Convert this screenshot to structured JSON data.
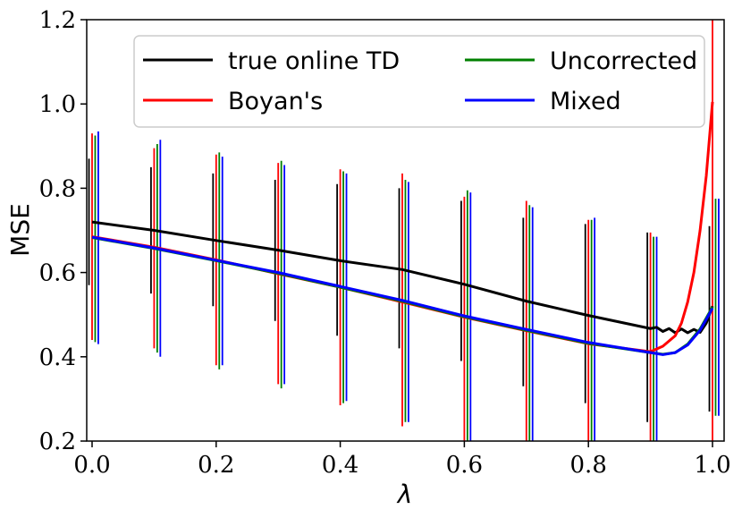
{
  "chart_data": {
    "type": "line",
    "xlabel": "λ",
    "ylabel": "MSE",
    "xlim": [
      -0.01,
      1.01
    ],
    "ylim": [
      0.2,
      1.2
    ],
    "xticks": [
      "0.0",
      "0.2",
      "0.4",
      "0.6",
      "0.8",
      "1.0"
    ],
    "yticks": [
      "0.2",
      "0.4",
      "0.6",
      "0.8",
      "1.0",
      "1.2"
    ],
    "legend_position": "top-center",
    "series": [
      {
        "name": "true online TD",
        "color": "#000000",
        "x": [
          0.0,
          0.1,
          0.2,
          0.3,
          0.4,
          0.5,
          0.6,
          0.7,
          0.8,
          0.9,
          0.91,
          0.92,
          0.93,
          0.94,
          0.95,
          0.96,
          0.97,
          0.98,
          0.99,
          1.0
        ],
        "y": [
          0.72,
          0.7,
          0.676,
          0.653,
          0.628,
          0.607,
          0.572,
          0.532,
          0.498,
          0.467,
          0.47,
          0.46,
          0.467,
          0.457,
          0.466,
          0.457,
          0.465,
          0.458,
          0.48,
          0.52
        ],
        "err_x": [
          -0.005,
          0.095,
          0.195,
          0.295,
          0.395,
          0.495,
          0.595,
          0.695,
          0.795,
          0.895,
          0.995
        ],
        "err_low": [
          0.57,
          0.55,
          0.52,
          0.485,
          0.45,
          0.42,
          0.39,
          0.33,
          0.29,
          0.245,
          0.27
        ],
        "err_high": [
          0.87,
          0.85,
          0.835,
          0.82,
          0.81,
          0.8,
          0.77,
          0.73,
          0.715,
          0.695,
          0.71
        ]
      },
      {
        "name": "Boyan's",
        "color": "#ff0000",
        "x": [
          0.0,
          0.1,
          0.2,
          0.3,
          0.4,
          0.5,
          0.6,
          0.7,
          0.8,
          0.9,
          0.92,
          0.94,
          0.95,
          0.96,
          0.97,
          0.98,
          0.99,
          1.0
        ],
        "y": [
          0.685,
          0.66,
          0.63,
          0.597,
          0.565,
          0.53,
          0.494,
          0.462,
          0.431,
          0.412,
          0.425,
          0.45,
          0.48,
          0.53,
          0.6,
          0.7,
          0.83,
          1.005
        ],
        "err_x": [
          0.0,
          0.1,
          0.2,
          0.3,
          0.4,
          0.5,
          0.6,
          0.7,
          0.8,
          0.9,
          1.0
        ],
        "err_low": [
          0.44,
          0.42,
          0.38,
          0.335,
          0.285,
          0.235,
          0.2,
          0.2,
          0.2,
          0.2,
          0.2
        ],
        "err_high": [
          0.93,
          0.895,
          0.88,
          0.86,
          0.845,
          0.835,
          0.78,
          0.77,
          0.725,
          0.695,
          1.2
        ]
      },
      {
        "name": "Uncorrected",
        "color": "#008000",
        "x": [
          0.0,
          0.1,
          0.2,
          0.3,
          0.4,
          0.5,
          0.6,
          0.7,
          0.8,
          0.9,
          0.92,
          0.94,
          0.96,
          0.98,
          1.0
        ],
        "y": [
          0.683,
          0.657,
          0.628,
          0.598,
          0.565,
          0.532,
          0.495,
          0.463,
          0.432,
          0.41,
          0.406,
          0.41,
          0.43,
          0.466,
          0.518
        ],
        "err_x": [
          0.005,
          0.105,
          0.205,
          0.305,
          0.405,
          0.505,
          0.605,
          0.705,
          0.805,
          0.905,
          1.005
        ],
        "err_low": [
          0.435,
          0.41,
          0.37,
          0.325,
          0.29,
          0.245,
          0.2,
          0.2,
          0.2,
          0.2,
          0.26
        ],
        "err_high": [
          0.925,
          0.905,
          0.885,
          0.865,
          0.84,
          0.82,
          0.795,
          0.76,
          0.725,
          0.685,
          0.775
        ]
      },
      {
        "name": "Mixed",
        "color": "#0000ff",
        "x": [
          0.0,
          0.1,
          0.2,
          0.3,
          0.4,
          0.5,
          0.6,
          0.7,
          0.8,
          0.9,
          0.92,
          0.94,
          0.96,
          0.98,
          1.0
        ],
        "y": [
          0.684,
          0.658,
          0.629,
          0.6,
          0.567,
          0.534,
          0.497,
          0.465,
          0.434,
          0.41,
          0.405,
          0.41,
          0.428,
          0.463,
          0.515
        ],
        "err_x": [
          0.01,
          0.11,
          0.21,
          0.31,
          0.41,
          0.51,
          0.61,
          0.71,
          0.81,
          0.91,
          1.01
        ],
        "err_low": [
          0.43,
          0.4,
          0.38,
          0.335,
          0.295,
          0.245,
          0.2,
          0.2,
          0.2,
          0.2,
          0.26
        ],
        "err_high": [
          0.935,
          0.915,
          0.875,
          0.855,
          0.835,
          0.815,
          0.79,
          0.755,
          0.73,
          0.685,
          0.775
        ]
      }
    ]
  }
}
